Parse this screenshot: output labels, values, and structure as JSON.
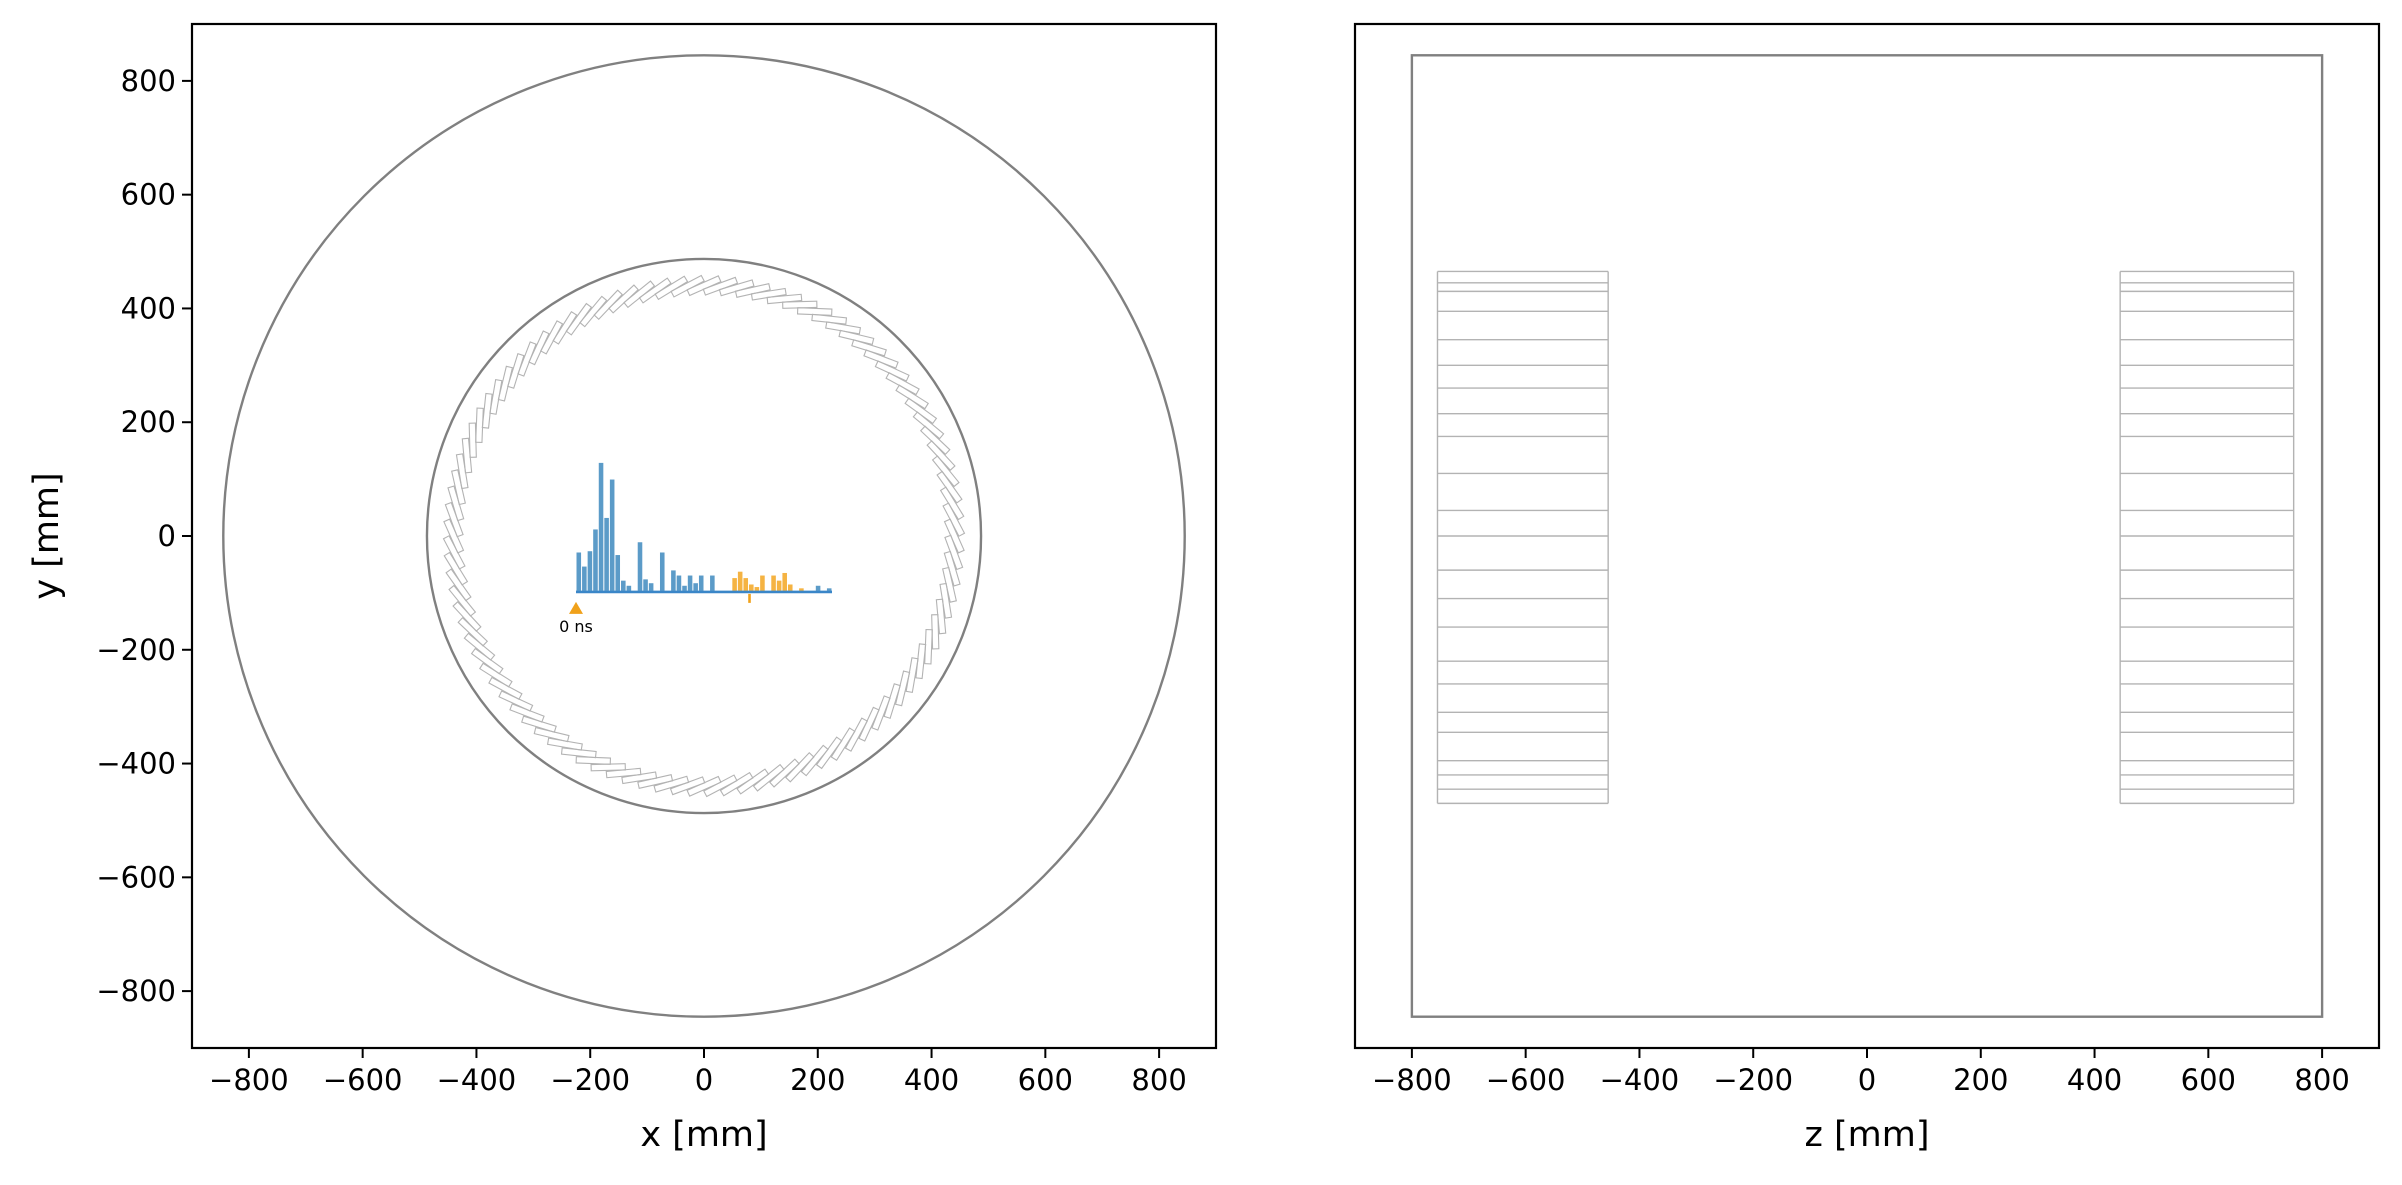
{
  "chart_data": [
    {
      "type": "scatter",
      "panel": "transverse-view",
      "xlabel": "x [mm]",
      "ylabel": "y [mm]",
      "xlim": [
        -900,
        900
      ],
      "ylim": [
        -900,
        900
      ],
      "x_ticks": [
        -800,
        -600,
        -400,
        -200,
        0,
        200,
        400,
        600,
        800
      ],
      "y_ticks": [
        800,
        600,
        400,
        200,
        0,
        -200,
        -400,
        -600,
        -800
      ],
      "x_tick_labels": [
        "−800",
        "−600",
        "−400",
        "−200",
        "0",
        "200",
        "400",
        "600",
        "800"
      ],
      "y_tick_labels": [
        "800",
        "600",
        "400",
        "200",
        "0",
        "−200",
        "−400",
        "−600",
        "−800"
      ],
      "grid": false,
      "circles": [
        {
          "name": "outer-boundary",
          "cx": 0,
          "cy": 0,
          "r": 845
        },
        {
          "name": "inner-boundary",
          "cx": 0,
          "cy": 0,
          "r": 487
        }
      ],
      "scintillator_ring": {
        "count": 96,
        "center_radius": 440,
        "length": 60,
        "width": 11,
        "tilt_deg": 24
      },
      "inset_histogram": {
        "x_start": -225,
        "x_end": 225,
        "baseline_y": -100,
        "tick_label": "0 ns",
        "bins_primary": [
          0.3,
          0.19,
          0.31,
          0.48,
          1.0,
          0.57,
          0.87,
          0.28,
          0.08,
          0.04,
          0.0,
          0.38,
          0.09,
          0.06,
          0.0,
          0.3,
          0.0,
          0.16,
          0.12,
          0.04,
          0.12,
          0.06,
          0.12,
          0.0,
          0.12,
          0.0,
          0.0,
          0.0,
          0.0,
          0.0,
          0.0,
          0.0,
          0.0,
          0.0,
          0.0,
          0.0,
          0.0,
          0.0,
          0.0,
          0.0,
          0.0,
          0.0,
          0.0,
          0.04,
          0.0,
          0.02
        ],
        "bins_secondary": [
          0.0,
          0.0,
          0.0,
          0.0,
          0.0,
          0.0,
          0.0,
          0.0,
          0.0,
          0.0,
          0.0,
          0.0,
          0.0,
          0.0,
          0.0,
          0.0,
          0.0,
          0.0,
          0.0,
          0.0,
          0.0,
          0.0,
          0.0,
          0.0,
          0.0,
          0.0,
          0.0,
          0.0,
          0.1,
          0.15,
          0.1,
          0.05,
          0.03,
          0.12,
          0.0,
          0.12,
          0.08,
          0.14,
          0.05,
          0.0,
          0.02,
          0.0,
          0.0,
          0.0,
          0.0,
          0.0
        ],
        "marker_x": -225,
        "secondary_marker_x": 80
      }
    },
    {
      "type": "scatter",
      "panel": "longitudinal-view",
      "xlabel": "z [mm]",
      "ylabel": "",
      "xlim": [
        -900,
        900
      ],
      "ylim": [
        -900,
        900
      ],
      "x_ticks": [
        -800,
        -600,
        -400,
        -200,
        0,
        200,
        400,
        600,
        800
      ],
      "x_tick_labels": [
        "−800",
        "−600",
        "−400",
        "−200",
        "0",
        "200",
        "400",
        "600",
        "800"
      ],
      "grid": false,
      "outer_rect": {
        "z0": -800,
        "z1": 800,
        "y0": -845,
        "y1": 845
      },
      "modules": [
        {
          "name": "module-left",
          "z0": -755,
          "z1": -455,
          "y0": -470,
          "y1": 465
        },
        {
          "name": "module-right",
          "z0": 445,
          "z1": 750,
          "y0": -470,
          "y1": 465
        }
      ],
      "strip_y": [
        465,
        445,
        430,
        395,
        345,
        300,
        260,
        215,
        175,
        110,
        45,
        0,
        -60,
        -110,
        -160,
        -220,
        -260,
        -310,
        -345,
        -395,
        -420,
        -445,
        -470
      ]
    }
  ],
  "colors": {
    "primary": "#5b9bc8",
    "secondary": "#f5b342",
    "marker": "#f0a11a",
    "baseline": "#3a86c8",
    "boundary": "#808080",
    "module": "#b3b3b3"
  }
}
